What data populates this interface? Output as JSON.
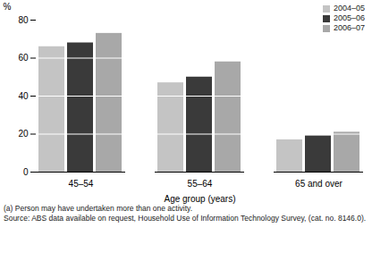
{
  "chart_data": {
    "type": "bar",
    "x_label": "Age group (years)",
    "y_label": "%",
    "categories": [
      "45–54",
      "55–64",
      "65 and over"
    ],
    "series": [
      {
        "name": "2004–05",
        "color": "#c4c4c4",
        "values": [
          66,
          47,
          17
        ]
      },
      {
        "name": "2005–06",
        "color": "#3a3a3a",
        "values": [
          68,
          50,
          19
        ]
      },
      {
        "name": "2006–07",
        "color": "#a8a8a8",
        "values": [
          73,
          58,
          21
        ]
      }
    ],
    "ylim": [
      0,
      80
    ],
    "yticks": [
      0,
      20,
      40,
      60,
      80
    ],
    "grid": true,
    "legend": "top-right",
    "annotations": [
      "(a) Person may have undertaken more than one activity.",
      "Source: ABS data available on request, Household Use of Information Technology Survey, (cat. no. 8146.0)."
    ]
  }
}
